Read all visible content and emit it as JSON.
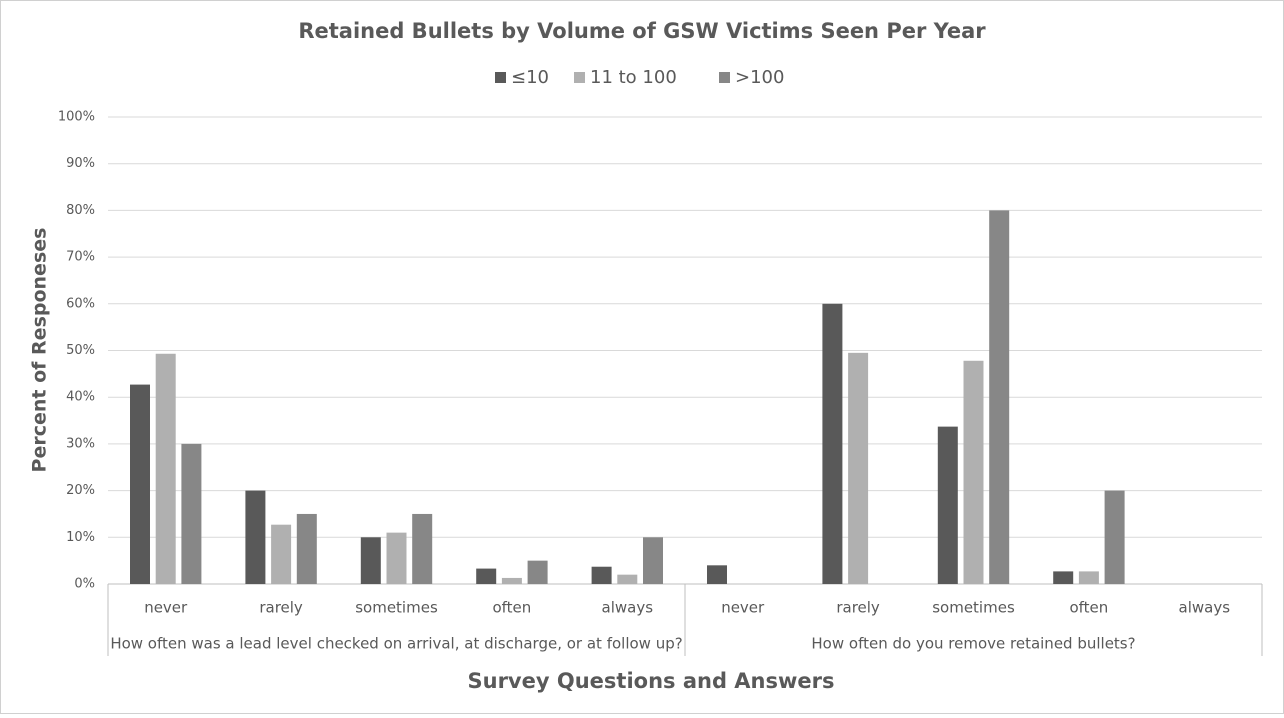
{
  "chart_data": {
    "type": "bar",
    "title": "Retained Bullets by Volume of GSW Victims Seen Per Year",
    "x_label": "Survey Questions and Answers",
    "y_label": "Percent of Responeses",
    "groups": [
      {
        "label": "How often was a lead level checked on arrival, at discharge, or at follow up?",
        "categories": [
          "never",
          "rarely",
          "sometimes",
          "often",
          "always"
        ]
      },
      {
        "label": "How often do you remove retained bullets?",
        "categories": [
          "never",
          "rarely",
          "sometimes",
          "often",
          "always"
        ]
      }
    ],
    "series": [
      {
        "name": "≤10",
        "color": "#595959",
        "values": [
          42.7,
          20,
          10,
          3.3,
          3.7,
          4,
          60,
          33.7,
          2.7,
          0
        ]
      },
      {
        "name": "11 to 100",
        "color": "#b0b0b0",
        "values": [
          49.3,
          12.7,
          11,
          1.3,
          2,
          0,
          49.5,
          47.8,
          2.7,
          0
        ]
      },
      {
        "name": ">100",
        "color": "#878787",
        "values": [
          30,
          15,
          15,
          5,
          10,
          0,
          0,
          80,
          20,
          0
        ]
      }
    ],
    "ylim": [
      0,
      100
    ],
    "yticks": [
      {
        "value": 0,
        "label": "0%"
      },
      {
        "value": 10,
        "label": "10%"
      },
      {
        "value": 20,
        "label": "20%"
      },
      {
        "value": 30,
        "label": "30%"
      },
      {
        "value": 40,
        "label": "40%"
      },
      {
        "value": 50,
        "label": "50%"
      },
      {
        "value": 60,
        "label": "60%"
      },
      {
        "value": 70,
        "label": "70%"
      },
      {
        "value": 80,
        "label": "80%"
      },
      {
        "value": 90,
        "label": "90%"
      },
      {
        "value": 100,
        "label": "100%"
      }
    ],
    "grid": true,
    "legend": "top"
  }
}
